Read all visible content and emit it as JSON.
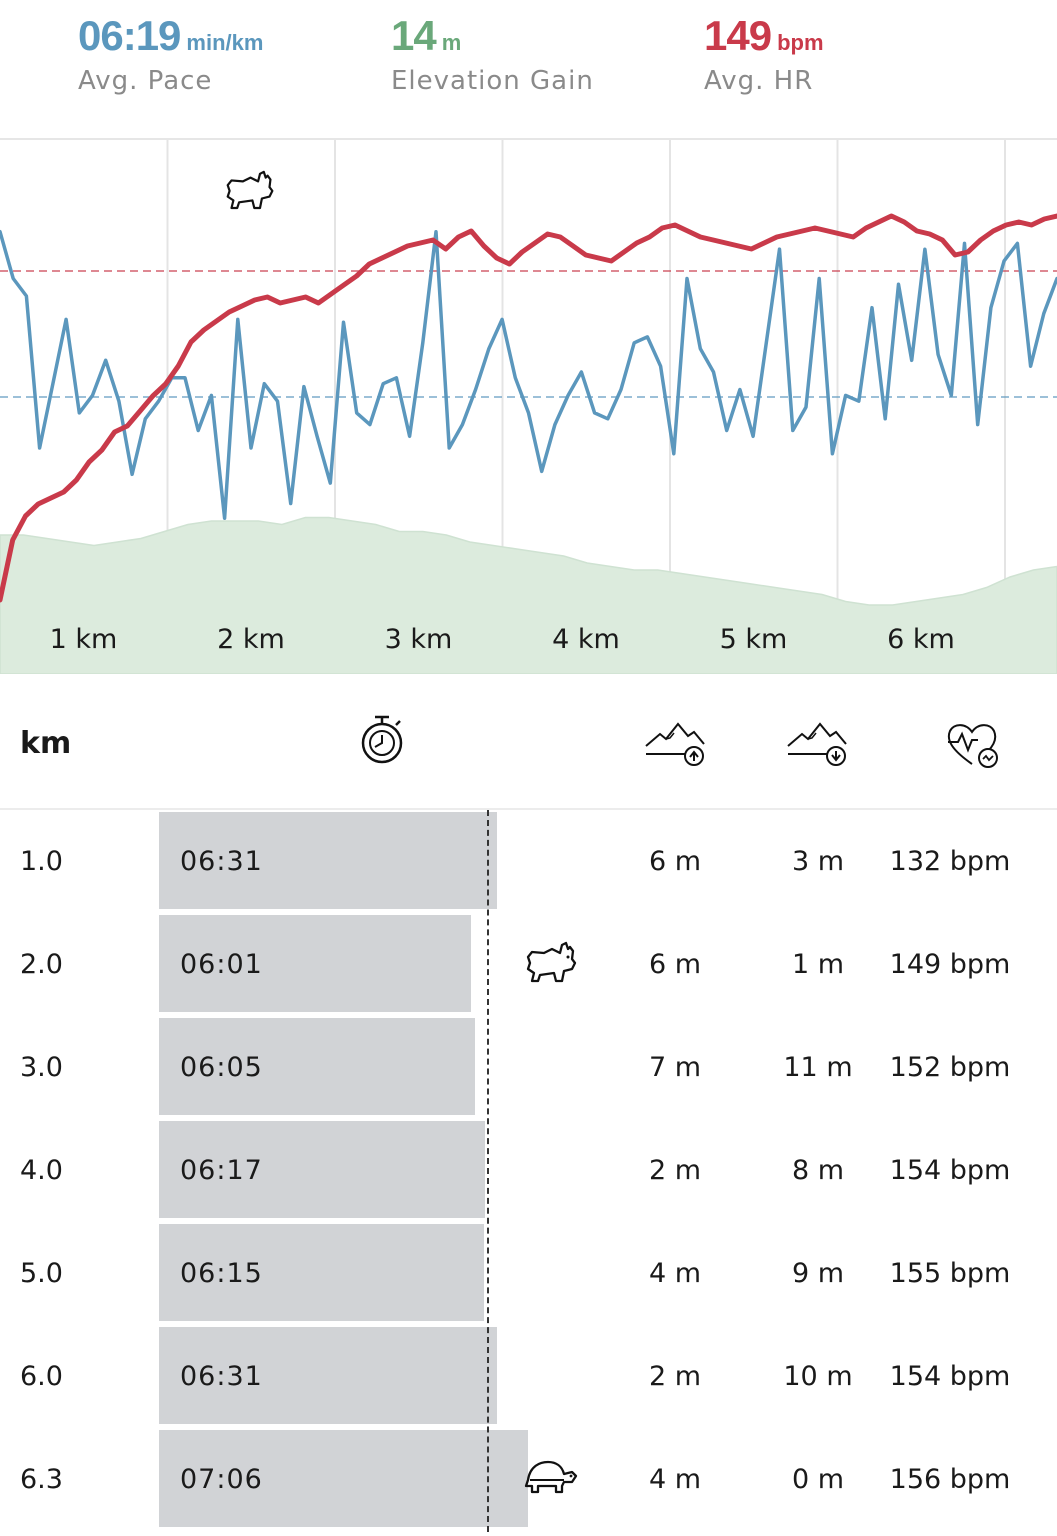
{
  "summary": {
    "pace": {
      "value": "06:19",
      "unit": "min/km",
      "label": "Avg. Pace",
      "color": "#5b97bd"
    },
    "elevation": {
      "value": "14",
      "unit": "m",
      "label": "Elevation Gain",
      "color": "#6aa87a"
    },
    "hr": {
      "value": "149",
      "unit": "bpm",
      "label": "Avg. HR",
      "color": "#c93a4a"
    }
  },
  "chart_data": {
    "type": "line",
    "x_ticks": [
      "1 km",
      "2 km",
      "3 km",
      "4 km",
      "5 km",
      "6 km"
    ],
    "x_range": [
      0,
      6.3
    ],
    "annotations": [
      "rabbit-icon"
    ],
    "series": [
      {
        "key": "heart_rate",
        "color": "#c93a4a",
        "reference_line": true,
        "values": [
          100,
          120,
          128,
          132,
          134,
          136,
          140,
          146,
          150,
          156,
          158,
          163,
          168,
          172,
          178,
          186,
          190,
          193,
          196,
          198,
          200,
          201,
          199,
          200,
          201,
          199,
          202,
          205,
          208,
          212,
          214,
          216,
          218,
          219,
          220,
          217,
          221,
          223,
          218,
          214,
          212,
          216,
          219,
          222,
          221,
          218,
          215,
          214,
          213,
          216,
          219,
          221,
          224,
          225,
          223,
          221,
          220,
          219,
          218,
          217,
          219,
          221,
          222,
          223,
          224,
          223,
          222,
          221,
          224,
          226,
          228,
          226,
          223,
          222,
          220,
          215,
          216,
          220,
          223,
          225,
          226,
          225,
          227,
          228
        ]
      },
      {
        "key": "pace",
        "color": "#5b97bd",
        "reference_line": true,
        "values": [
          226,
          210,
          204,
          152,
          174,
          196,
          164,
          170,
          182,
          168,
          143,
          162,
          168,
          176,
          176,
          158,
          170,
          128,
          196,
          152,
          174,
          168,
          133,
          173,
          156,
          140,
          195,
          164,
          160,
          174,
          176,
          156,
          188,
          226,
          152,
          160,
          172,
          186,
          196,
          176,
          164,
          144,
          160,
          170,
          178,
          164,
          162,
          172,
          188,
          190,
          180,
          150,
          210,
          186,
          178,
          158,
          172,
          156,
          188,
          220,
          158,
          166,
          210,
          150,
          170,
          168,
          200,
          162,
          208,
          182,
          220,
          184,
          170,
          222,
          160,
          200,
          216,
          222,
          180,
          198,
          210
        ]
      },
      {
        "key": "elevation",
        "color": "#dcebdd",
        "values": [
          30,
          30,
          29,
          28,
          27,
          28,
          29,
          31,
          33,
          34,
          34,
          34,
          33,
          35,
          35,
          34,
          33,
          31,
          31,
          30,
          28,
          27,
          26,
          25,
          24,
          22,
          21,
          20,
          20,
          19,
          18,
          17,
          16,
          15,
          14,
          13,
          11,
          10,
          10,
          11,
          12,
          13,
          15,
          18,
          20,
          21
        ]
      }
    ]
  },
  "table": {
    "header": {
      "km_label": "km"
    },
    "rows": [
      {
        "km": "1.0",
        "pace": "06:31",
        "pace_sec": 391,
        "up": "6 m",
        "down": "3 m",
        "hr": "132 bpm",
        "badge": ""
      },
      {
        "km": "2.0",
        "pace": "06:01",
        "pace_sec": 361,
        "up": "6 m",
        "down": "1 m",
        "hr": "149 bpm",
        "badge": "rabbit"
      },
      {
        "km": "3.0",
        "pace": "06:05",
        "pace_sec": 365,
        "up": "7 m",
        "down": "11 m",
        "hr": "152 bpm",
        "badge": ""
      },
      {
        "km": "4.0",
        "pace": "06:17",
        "pace_sec": 377,
        "up": "2 m",
        "down": "8 m",
        "hr": "154 bpm",
        "badge": ""
      },
      {
        "km": "5.0",
        "pace": "06:15",
        "pace_sec": 375,
        "up": "4 m",
        "down": "9 m",
        "hr": "155 bpm",
        "badge": ""
      },
      {
        "km": "6.0",
        "pace": "06:31",
        "pace_sec": 391,
        "up": "2 m",
        "down": "10 m",
        "hr": "154 bpm",
        "badge": ""
      },
      {
        "km": "6.3",
        "pace": "07:06",
        "pace_sec": 426,
        "up": "4 m",
        "down": "0 m",
        "hr": "156 bpm",
        "badge": "turtle"
      }
    ]
  }
}
